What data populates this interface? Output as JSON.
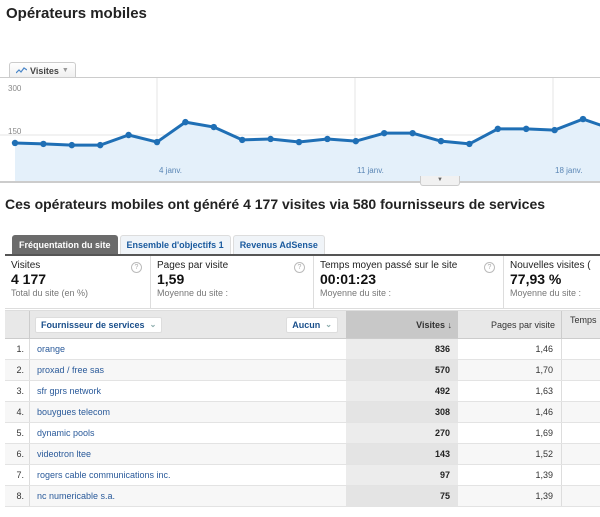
{
  "page": {
    "title": "Opérateurs mobiles",
    "summary": "Ces opérateurs mobiles ont généré 4 177 visites via 580 fournisseurs de services"
  },
  "chart": {
    "metric_label": "Visites",
    "collapse_icon": "chevron-down-icon"
  },
  "chart_data": {
    "type": "area",
    "title": "",
    "series": [
      {
        "name": "Visites",
        "values": [
          124,
          121,
          117,
          117,
          150,
          127,
          192,
          176,
          134,
          137,
          127,
          137,
          130,
          156,
          156,
          130,
          121,
          170,
          170,
          166,
          202,
          170
        ]
      }
    ],
    "x_tick_labels": [
      "4 janv.",
      "11 janv.",
      "18 janv."
    ],
    "y_tick_labels": [
      "150",
      "300"
    ],
    "ylim": [
      0,
      300
    ],
    "grid": true,
    "color": "#1f6fb5",
    "fill": "#e4f0fa"
  },
  "tabs": [
    {
      "label": "Fréquentation du site",
      "active": true
    },
    {
      "label": "Ensemble d'objectifs 1",
      "active": false
    },
    {
      "label": "Revenus AdSense",
      "active": false
    }
  ],
  "scorecards": [
    {
      "label": "Visites",
      "value": "4 177",
      "sub": "Total du site (en %)"
    },
    {
      "label": "Pages par visite",
      "value": "1,59",
      "sub": "Moyenne du site :"
    },
    {
      "label": "Temps moyen passé sur le site",
      "value": "00:01:23",
      "sub": "Moyenne du site :"
    },
    {
      "label": "Nouvelles visites (",
      "value": "77,93 %",
      "sub": "Moyenne du site :"
    }
  ],
  "table": {
    "primary_dimension": "Fournisseur de services",
    "secondary_dimension": "Aucun",
    "columns": {
      "visits": "Visites ↓",
      "ppv": "Pages par visite",
      "time": "Temps"
    },
    "rows": [
      {
        "idx": "1.",
        "name": "orange",
        "visits": "836",
        "ppv": "1,46"
      },
      {
        "idx": "2.",
        "name": "proxad / free sas",
        "visits": "570",
        "ppv": "1,70"
      },
      {
        "idx": "3.",
        "name": "sfr gprs network",
        "visits": "492",
        "ppv": "1,63"
      },
      {
        "idx": "4.",
        "name": "bouygues telecom",
        "visits": "308",
        "ppv": "1,46"
      },
      {
        "idx": "5.",
        "name": "dynamic pools",
        "visits": "270",
        "ppv": "1,69"
      },
      {
        "idx": "6.",
        "name": "videotron ltee",
        "visits": "143",
        "ppv": "1,52"
      },
      {
        "idx": "7.",
        "name": "rogers cable communications inc.",
        "visits": "97",
        "ppv": "1,39"
      },
      {
        "idx": "8.",
        "name": "nc numericable s.a.",
        "visits": "75",
        "ppv": "1,39"
      }
    ]
  }
}
